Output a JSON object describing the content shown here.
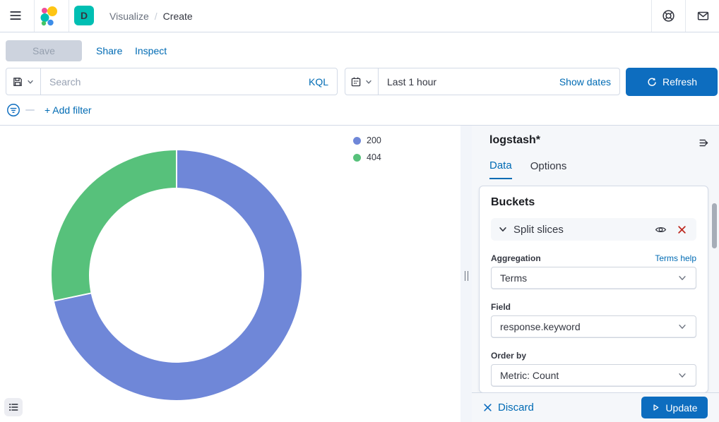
{
  "nav": {
    "breadcrumb_section": "Visualize",
    "breadcrumb_separator": "/",
    "breadcrumb_current": "Create",
    "space_initial": "D"
  },
  "toolbar": {
    "save_label": "Save",
    "share_label": "Share",
    "inspect_label": "Inspect"
  },
  "query_bar": {
    "search_placeholder": "Search",
    "query_language": "KQL",
    "time_range": "Last 1 hour",
    "show_dates_label": "Show dates",
    "refresh_label": "Refresh"
  },
  "filter_bar": {
    "add_filter_label": "+ Add filter"
  },
  "chart_data": {
    "type": "pie",
    "subtype": "donut",
    "title": "",
    "labels": [
      "200",
      "404"
    ],
    "values_pct": [
      71.7,
      28.3
    ],
    "colors": [
      "#6f87d8",
      "#57c17b"
    ],
    "hole_ratio": 0.7,
    "start_angle_deg": 0,
    "direction": "clockwise",
    "legend_position": "top-right"
  },
  "editor": {
    "index_pattern": "logstash*",
    "tabs": [
      {
        "label": "Data"
      },
      {
        "label": "Options"
      }
    ],
    "active_tab": "Data",
    "buckets_title": "Buckets",
    "bucket": {
      "name": "Split slices",
      "aggregation_label": "Aggregation",
      "aggregation_help": "Terms help",
      "aggregation_value": "Terms",
      "field_label": "Field",
      "field_value": "response.keyword",
      "order_by_label": "Order by",
      "order_by_value": "Metric: Count"
    },
    "footer": {
      "discard_label": "Discard",
      "update_label": "Update"
    }
  },
  "colors": {
    "accent_blue": "#0d6dbf",
    "link_blue": "#006bb4",
    "danger_red": "#bd271e",
    "slice_200": "#6f87d8",
    "slice_404": "#57c17b",
    "space_teal": "#00bfb3",
    "panel_bg": "#f5f7fa",
    "border": "#d3dae6"
  }
}
